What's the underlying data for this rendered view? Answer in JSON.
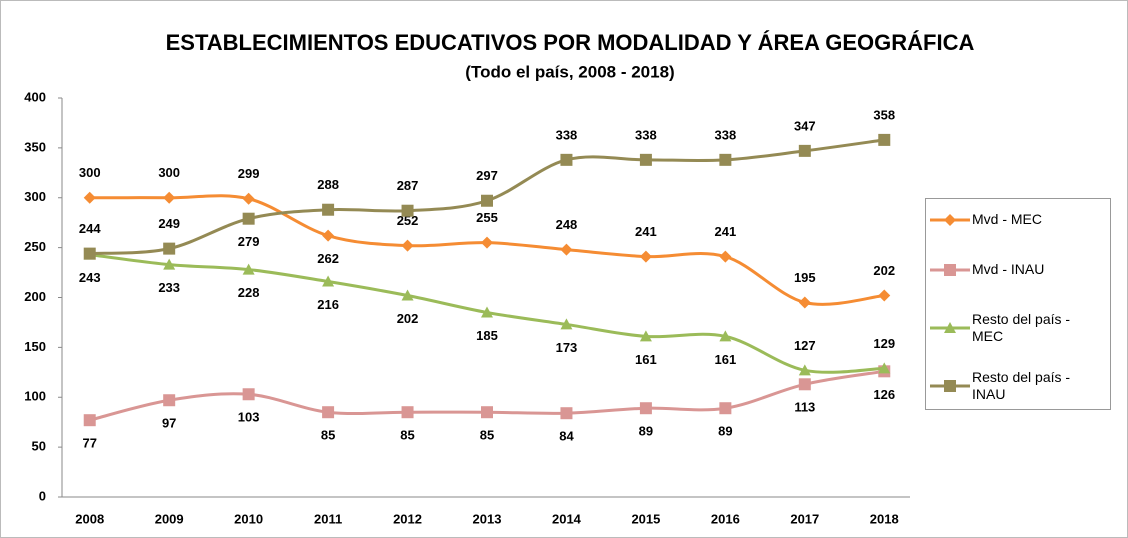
{
  "chart_data": {
    "type": "line",
    "title": "ESTABLECIMIENTOS EDUCATIVOS POR MODALIDAD Y ÁREA  GEOGRÁFICA",
    "subtitle": "(Todo el país, 2008 - 2018)",
    "categories": [
      "2008",
      "2009",
      "2010",
      "2011",
      "2012",
      "2013",
      "2014",
      "2015",
      "2016",
      "2017",
      "2018"
    ],
    "series": [
      {
        "name": "Mvd - MEC",
        "color": "#f58c33",
        "marker": "diamond",
        "values": [
          300,
          300,
          299,
          262,
          252,
          255,
          248,
          241,
          241,
          195,
          202
        ]
      },
      {
        "name": "Mvd - INAU",
        "color": "#d99694",
        "marker": "square",
        "values": [
          77,
          97,
          103,
          85,
          85,
          85,
          84,
          89,
          89,
          113,
          126
        ]
      },
      {
        "name": "Resto del país - MEC",
        "color": "#9bbb59",
        "marker": "triangle",
        "values": [
          243,
          233,
          228,
          216,
          202,
          185,
          173,
          161,
          161,
          127,
          129
        ]
      },
      {
        "name": "Resto del país - INAU",
        "color": "#948a54",
        "marker": "square",
        "values": [
          244,
          249,
          279,
          288,
          287,
          297,
          338,
          338,
          338,
          347,
          358
        ]
      }
    ],
    "ylim": [
      0,
      400
    ],
    "yticks": [
      0,
      50,
      100,
      150,
      200,
      250,
      300,
      350,
      400
    ],
    "legend": "right",
    "smooth": true
  }
}
